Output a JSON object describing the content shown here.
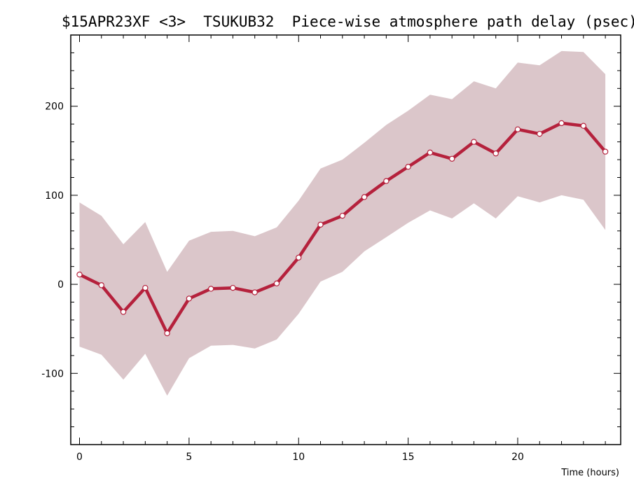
{
  "chart_data": {
    "type": "line",
    "title": "$15APR23XF <3>  TSUKUB32  Piece-wise atmosphere path delay (psec)",
    "xlabel": "Time (hours)",
    "ylabel": "",
    "xlim": [
      -0.4,
      24.7
    ],
    "ylim": [
      -180,
      280
    ],
    "x_ticks": [
      0,
      5,
      10,
      15,
      20
    ],
    "y_ticks": [
      -100,
      0,
      100,
      200
    ],
    "grid": false,
    "legend": "none",
    "colors": {
      "line": "#b5213c",
      "band": "#dbc6ca",
      "marker_fill": "#ffffff"
    },
    "series": [
      {
        "x": [
          0,
          1,
          2,
          3,
          4,
          5,
          6,
          7,
          8,
          9,
          10,
          11,
          12,
          13,
          14,
          15,
          16,
          17,
          18,
          19,
          20,
          21,
          22,
          23,
          24
        ],
        "values": [
          11,
          -1,
          -31,
          -4,
          -55,
          -16,
          -5,
          -4,
          -9,
          1,
          30,
          67,
          77,
          98,
          116,
          132,
          148,
          141,
          160,
          147,
          174,
          169,
          181,
          178,
          149
        ],
        "upper": [
          92,
          77,
          45,
          70,
          14,
          49,
          59,
          60,
          54,
          64,
          94,
          130,
          140,
          159,
          179,
          195,
          213,
          208,
          228,
          220,
          249,
          246,
          262,
          261,
          236
        ],
        "lower": [
          -70,
          -79,
          -107,
          -78,
          -125,
          -83,
          -69,
          -68,
          -72,
          -62,
          -33,
          3,
          14,
          37,
          53,
          69,
          83,
          74,
          91,
          74,
          99,
          92,
          100,
          95,
          61
        ]
      }
    ]
  }
}
